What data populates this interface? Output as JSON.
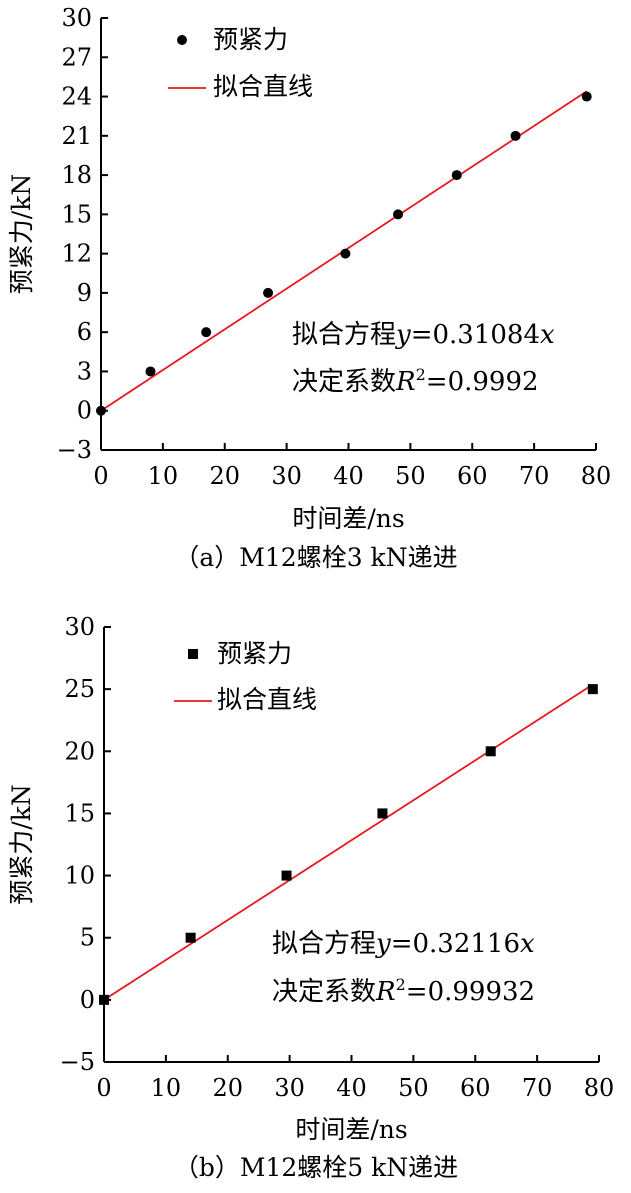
{
  "chart_data": [
    {
      "type": "scatter",
      "caption": "（a）M12螺栓3 kN递进",
      "xlabel": "时间差/ns",
      "ylabel": "预紧力/kN",
      "xlim": [
        0,
        80
      ],
      "ylim": [
        -3,
        30
      ],
      "xticks": [
        0,
        10,
        20,
        30,
        40,
        50,
        60,
        70,
        80
      ],
      "yticks": [
        -3,
        0,
        3,
        6,
        9,
        12,
        15,
        18,
        21,
        24,
        27,
        30
      ],
      "marker": "circle",
      "legend_position": "top-left",
      "series": [
        {
          "name": "预紧力",
          "kind": "points",
          "x": [
            0,
            8,
            17,
            27,
            39.5,
            48,
            57.5,
            67,
            78.5
          ],
          "y": [
            0,
            3,
            6,
            9,
            12,
            15,
            18,
            21,
            24
          ]
        },
        {
          "name": "拟合直线",
          "kind": "line",
          "slope": 0.31084,
          "x_range": [
            0,
            78.5
          ],
          "color": "#e8191c"
        }
      ],
      "annotation": {
        "eq_prefix": "拟合方程",
        "eq_y": "y",
        "eq_mid": "=0.31084",
        "eq_x": "x",
        "r2_prefix": "决定系数",
        "r2_R": "R",
        "r2_sup": "2",
        "r2_value": "=0.9992"
      }
    },
    {
      "type": "scatter",
      "caption": "（b）M12螺栓5 kN递进",
      "xlabel": "时间差/ns",
      "ylabel": "预紧力/kN",
      "xlim": [
        0,
        80
      ],
      "ylim": [
        -5,
        30
      ],
      "xticks": [
        0,
        10,
        20,
        30,
        40,
        50,
        60,
        70,
        80
      ],
      "yticks": [
        -5,
        0,
        5,
        10,
        15,
        20,
        25,
        30
      ],
      "marker": "square",
      "legend_position": "top-left",
      "series": [
        {
          "name": "预紧力",
          "kind": "points",
          "x": [
            0,
            14,
            29.5,
            45,
            62.5,
            79
          ],
          "y": [
            0,
            5,
            10,
            15,
            20,
            25
          ]
        },
        {
          "name": "拟合直线",
          "kind": "line",
          "slope": 0.32116,
          "x_range": [
            0,
            79
          ],
          "color": "#e8191c"
        }
      ],
      "annotation": {
        "eq_prefix": "拟合方程",
        "eq_y": "y",
        "eq_mid": "=0.32116",
        "eq_x": "x",
        "r2_prefix": "决定系数",
        "r2_R": "R",
        "r2_sup": "2",
        "r2_value": "=0.99932"
      }
    }
  ]
}
